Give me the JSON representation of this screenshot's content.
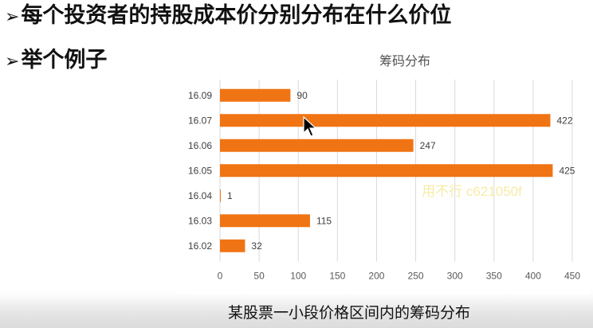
{
  "slide": {
    "bullet1": "每个投资者的持股成本价分别分布在什么价位",
    "bullet2": "举个例子",
    "bullet_marker": "➢",
    "caption": "某股票一小段价格区间内的筹码分布"
  },
  "watermark": "用不行 c621050f",
  "chart_data": {
    "type": "bar",
    "orientation": "horizontal",
    "title": "筹码分布",
    "categories": [
      "16.09",
      "16.07",
      "16.06",
      "16.05",
      "16.04",
      "16.03",
      "16.02"
    ],
    "values": [
      90,
      422,
      247,
      425,
      1,
      115,
      32
    ],
    "xlim": [
      0,
      450
    ],
    "xticks": [
      0,
      50,
      100,
      150,
      200,
      250,
      300,
      350,
      400,
      450
    ],
    "grid": "vertical",
    "bar_color": "#f07414",
    "data_labels": true
  }
}
